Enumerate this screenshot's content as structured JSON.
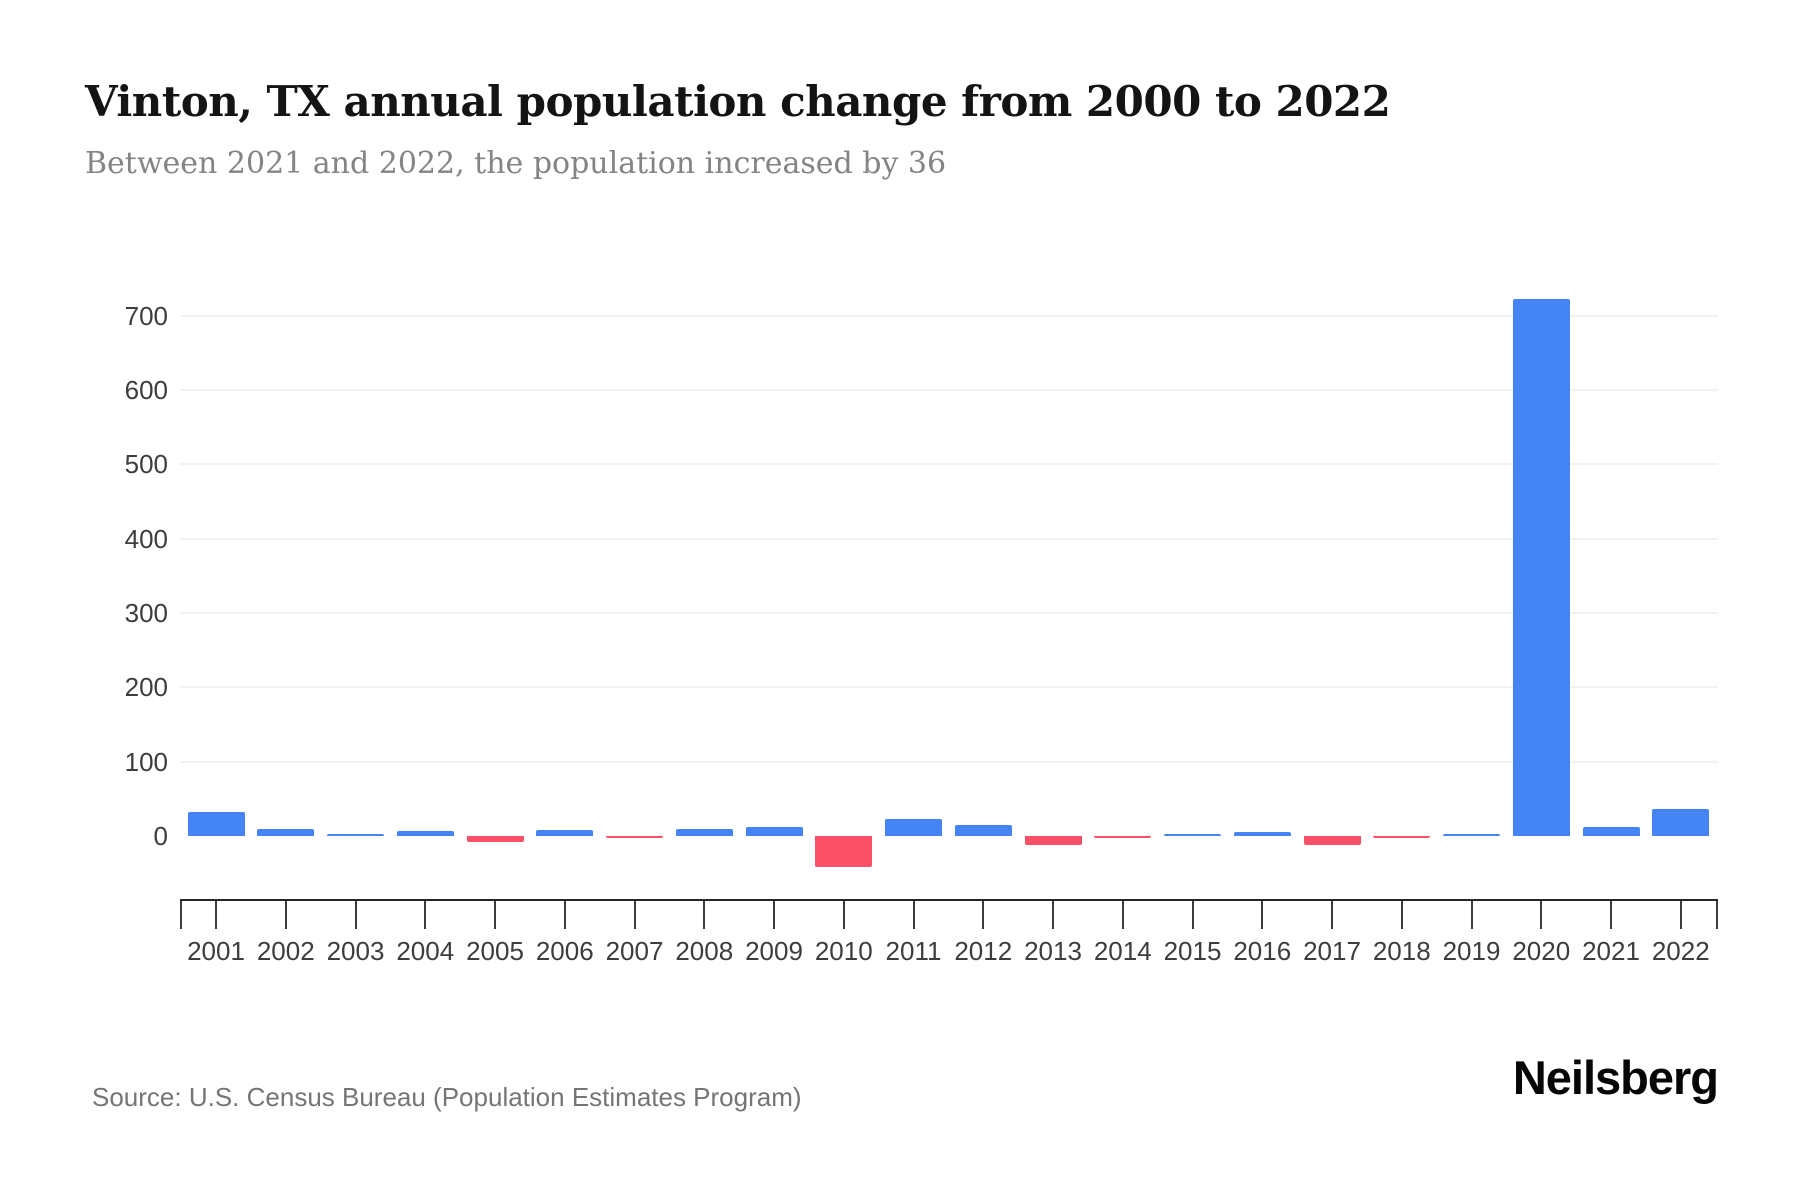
{
  "header": {
    "title": "Vinton, TX annual population change from 2000 to 2022",
    "subtitle": "Between 2021 and 2022, the population increased by 36"
  },
  "footer": {
    "source": "Source: U.S. Census Bureau (Population Estimates Program)",
    "brand": "Neilsberg"
  },
  "chart_data": {
    "type": "bar",
    "title": "Vinton, TX annual population change from 2000 to 2022",
    "subtitle": "Between 2021 and 2022, the population increased by 36",
    "categories": [
      "2001",
      "2002",
      "2003",
      "2004",
      "2005",
      "2006",
      "2007",
      "2008",
      "2009",
      "2010",
      "2011",
      "2012",
      "2013",
      "2014",
      "2015",
      "2016",
      "2017",
      "2018",
      "2019",
      "2020",
      "2021",
      "2022"
    ],
    "values": [
      32,
      10,
      3,
      7,
      -8,
      8,
      -3,
      10,
      12,
      -42,
      23,
      15,
      -12,
      -3,
      2,
      5,
      -12,
      -2,
      1,
      722,
      12,
      36
    ],
    "xlabel": "",
    "ylabel": "",
    "ylim": [
      -60,
      780
    ],
    "yticks": [
      0,
      100,
      200,
      300,
      400,
      500,
      600,
      700
    ],
    "grid": true,
    "legend": false,
    "colors": {
      "positive": "#4584f4",
      "negative": "#fb5168"
    },
    "axis_color": "#262626",
    "gridline_color": "#f2f2f2",
    "label_color": "#3d3d3d"
  }
}
